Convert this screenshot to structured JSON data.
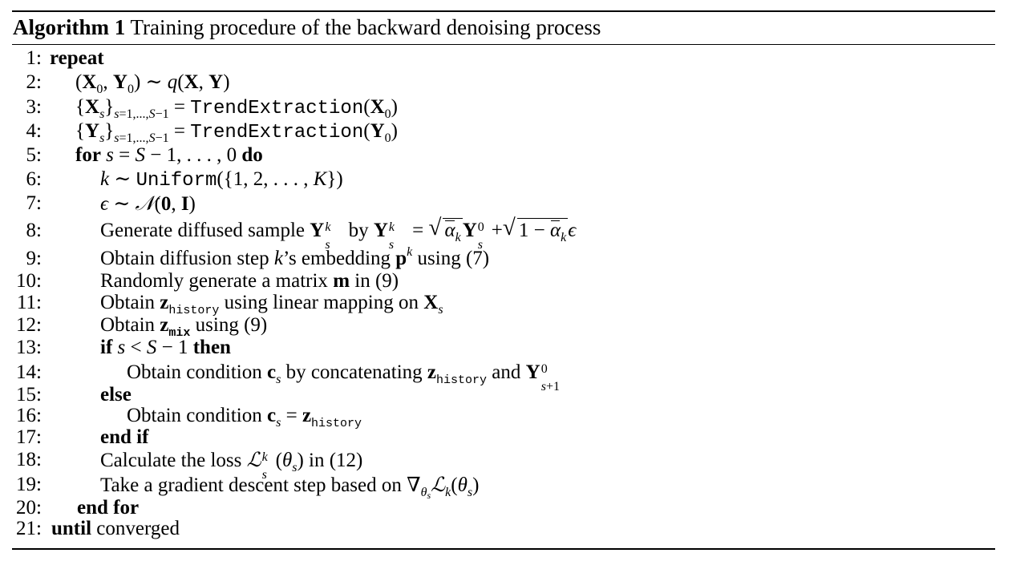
{
  "algorithm": {
    "label": "Algorithm 1",
    "title": "Training procedure of the backward denoising process"
  },
  "steps": [
    {
      "num": "1:",
      "kw_repeat": "repeat"
    },
    {
      "num": "2:"
    },
    {
      "num": "3:",
      "fn": "TrendExtraction"
    },
    {
      "num": "4:",
      "fn": "TrendExtraction"
    },
    {
      "num": "5:",
      "kw_for": "for",
      "kw_do": "do"
    },
    {
      "num": "6:",
      "fn": "Uniform"
    },
    {
      "num": "7:"
    },
    {
      "num": "8:",
      "text_a": "Generate diffused sample",
      "text_b": "by"
    },
    {
      "num": "9:",
      "text_a": "Obtain diffusion step",
      "text_b": "’s embedding",
      "text_c": "using (7)"
    },
    {
      "num": "10:",
      "text_a": "Randomly generate a matrix",
      "text_b": "in (9)"
    },
    {
      "num": "11:",
      "text_a": "Obtain",
      "sub": "history",
      "text_b": "using linear mapping on"
    },
    {
      "num": "12:",
      "text_a": "Obtain",
      "sub": "mix",
      "text_b": "using (9)"
    },
    {
      "num": "13:",
      "kw_if": "if",
      "kw_then": "then"
    },
    {
      "num": "14:",
      "text_a": "Obtain condition",
      "text_b": "by concatenating",
      "sub": "history",
      "text_c": "and"
    },
    {
      "num": "15:",
      "kw_else": "else"
    },
    {
      "num": "16:",
      "text_a": "Obtain condition",
      "sub": "history"
    },
    {
      "num": "17:",
      "kw_endif": "end if"
    },
    {
      "num": "18:",
      "text_a": "Calculate the loss",
      "text_b": "in (12)"
    },
    {
      "num": "19:",
      "text_a": "Take a gradient descent step based on"
    },
    {
      "num": "20:",
      "kw_endfor": "end for"
    },
    {
      "num": "21:",
      "kw_until": "until",
      "text_a": "converged"
    }
  ]
}
